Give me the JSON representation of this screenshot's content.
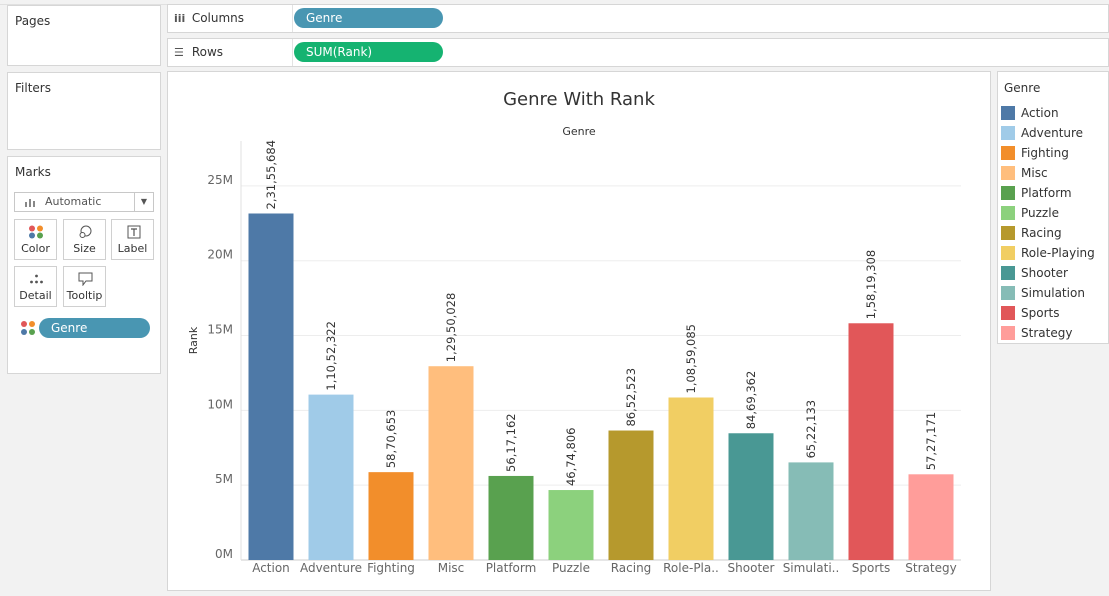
{
  "pages_card": {
    "title": "Pages"
  },
  "filters_card": {
    "title": "Filters"
  },
  "marks_card": {
    "title": "Marks",
    "mark_type": "Automatic",
    "buttons": {
      "color": "Color",
      "size": "Size",
      "label": "Label",
      "detail": "Detail",
      "tooltip": "Tooltip"
    },
    "genre_pill": "Genre",
    "pill_color": "#4996b2"
  },
  "shelves": {
    "columns": {
      "label": "Columns",
      "pill": "Genre",
      "pill_color": "#4996b2"
    },
    "rows": {
      "label": "Rows",
      "pill": "SUM(Rank)",
      "pill_color": "#15b371"
    }
  },
  "legend": {
    "title": "Genre",
    "items": [
      {
        "label": "Action",
        "color": "#4e79a7"
      },
      {
        "label": "Adventure",
        "color": "#a0cbe8"
      },
      {
        "label": "Fighting",
        "color": "#f28e2b"
      },
      {
        "label": "Misc",
        "color": "#ffbe7d"
      },
      {
        "label": "Platform",
        "color": "#59a14f"
      },
      {
        "label": "Puzzle",
        "color": "#8cd17d"
      },
      {
        "label": "Racing",
        "color": "#b6992d"
      },
      {
        "label": "Role-Playing",
        "color": "#f1ce63"
      },
      {
        "label": "Shooter",
        "color": "#499894"
      },
      {
        "label": "Simulation",
        "color": "#86bcb6"
      },
      {
        "label": "Sports",
        "color": "#e15759"
      },
      {
        "label": "Strategy",
        "color": "#ff9d9a"
      }
    ]
  },
  "chart_data": {
    "type": "bar",
    "title": "Genre With Rank",
    "subtitle": "Genre",
    "ylabel": "Rank",
    "xlabel": "",
    "ylim": [
      0,
      28000000
    ],
    "yticks": [
      0,
      5000000,
      10000000,
      15000000,
      20000000,
      25000000
    ],
    "ytick_labels": [
      "0M",
      "5M",
      "10M",
      "15M",
      "20M",
      "25M"
    ],
    "grid": true,
    "legend_position": "right",
    "categories": [
      "Action",
      "Adventure",
      "Fighting",
      "Misc",
      "Platform",
      "Puzzle",
      "Racing",
      "Role-Pla..",
      "Shooter",
      "Simulati..",
      "Sports",
      "Strategy"
    ],
    "values": [
      23155684,
      11052322,
      5870653,
      12950028,
      5617162,
      4674806,
      8652523,
      10859085,
      8469362,
      6522133,
      15819308,
      5727171
    ],
    "data_labels": [
      "2,31,55,684",
      "1,10,52,322",
      "58,70,653",
      "1,29,50,028",
      "56,17,162",
      "46,74,806",
      "86,52,523",
      "1,08,59,085",
      "84,69,362",
      "65,22,133",
      "1,58,19,308",
      "57,27,171"
    ],
    "colors": [
      "#4e79a7",
      "#a0cbe8",
      "#f28e2b",
      "#ffbe7d",
      "#59a14f",
      "#8cd17d",
      "#b6992d",
      "#f1ce63",
      "#499894",
      "#86bcb6",
      "#e15759",
      "#ff9d9a"
    ]
  }
}
